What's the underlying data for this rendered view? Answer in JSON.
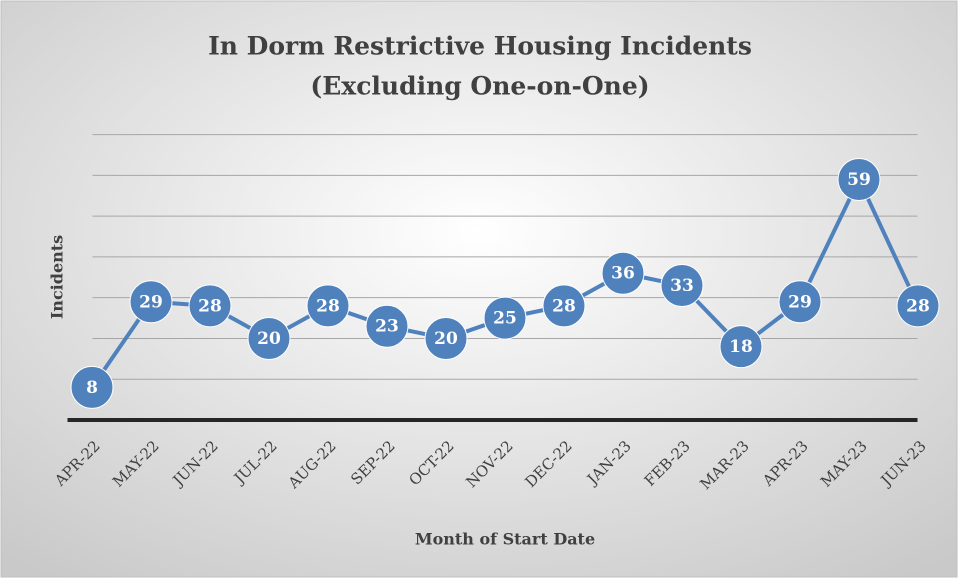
{
  "chart_data": {
    "type": "line",
    "title": [
      "In Dorm Restrictive Housing Incidents",
      "(Excluding One-on-One)"
    ],
    "x_label": "Month of Start Date",
    "y_label": "Incidents",
    "categories": [
      "APR-22",
      "MAY-22",
      "JUN-22",
      "JUL-22",
      "AUG-22",
      "SEP-22",
      "OCT-22",
      "NOV-22",
      "DEC-22",
      "JAN-23",
      "FEB-23",
      "MAR-23",
      "APR-23",
      "MAY-23",
      "JUN-23"
    ],
    "series": [
      {
        "name": "Incidents",
        "color": "#4f81bd",
        "values": [
          8,
          29,
          28,
          20,
          28,
          23,
          20,
          25,
          28,
          36,
          33,
          18,
          29,
          59,
          28
        ]
      }
    ],
    "ylim": [
      0,
      70
    ],
    "yticks": [
      0,
      10,
      20,
      30,
      40,
      50,
      60,
      70
    ],
    "grid": true
  }
}
